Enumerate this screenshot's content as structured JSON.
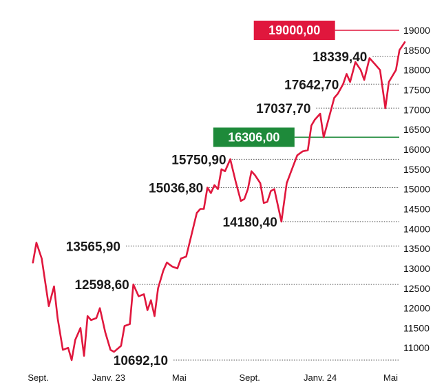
{
  "chart_data": {
    "type": "line",
    "ylim": [
      10692.1,
      19000
    ],
    "y_ticks": [
      11000,
      11500,
      12000,
      12500,
      13000,
      13500,
      14000,
      14500,
      15000,
      15500,
      16000,
      16500,
      17000,
      17500,
      18000,
      18500,
      19000
    ],
    "y_tick_labels": [
      "11000",
      "11500",
      "12000",
      "12500",
      "13000",
      "13500",
      "14000",
      "14500",
      "15000",
      "15500",
      "16000",
      "16500",
      "17000",
      "17500",
      "18000",
      "18500",
      "19000"
    ],
    "x_tick_labels": [
      "Sept.",
      "Janv. 23",
      "Mai",
      "Sept.",
      "Janv. 24",
      "Mai"
    ],
    "x_tick_months": [
      0,
      4,
      8,
      12,
      16,
      20
    ],
    "series": [
      {
        "color": "#e0173d",
        "points": [
          [
            -0.3,
            13150
          ],
          [
            -0.1,
            13650
          ],
          [
            0.2,
            13250
          ],
          [
            0.6,
            12050
          ],
          [
            0.9,
            12550
          ],
          [
            1.1,
            11750
          ],
          [
            1.4,
            10950
          ],
          [
            1.7,
            11000
          ],
          [
            1.9,
            10692.1
          ],
          [
            2.1,
            11200
          ],
          [
            2.4,
            11500
          ],
          [
            2.6,
            10800
          ],
          [
            2.8,
            11800
          ],
          [
            3.0,
            11700
          ],
          [
            3.3,
            11750
          ],
          [
            3.5,
            12000
          ],
          [
            3.8,
            11400
          ],
          [
            4.1,
            10950
          ],
          [
            4.3,
            10900
          ],
          [
            4.7,
            11050
          ],
          [
            4.9,
            11550
          ],
          [
            5.2,
            11600
          ],
          [
            5.4,
            12598.6
          ],
          [
            5.7,
            12300
          ],
          [
            6.0,
            12350
          ],
          [
            6.2,
            11950
          ],
          [
            6.4,
            12200
          ],
          [
            6.6,
            11800
          ],
          [
            6.8,
            12500
          ],
          [
            7.1,
            12950
          ],
          [
            7.3,
            13150
          ],
          [
            7.6,
            13050
          ],
          [
            7.9,
            13000
          ],
          [
            8.1,
            13250
          ],
          [
            8.4,
            13300
          ],
          [
            8.7,
            13850
          ],
          [
            9.0,
            14400
          ],
          [
            9.2,
            14500
          ],
          [
            9.4,
            14500
          ],
          [
            9.6,
            15036.8
          ],
          [
            9.8,
            14900
          ],
          [
            10.0,
            15100
          ],
          [
            10.2,
            15000
          ],
          [
            10.4,
            15500
          ],
          [
            10.6,
            15450
          ],
          [
            10.9,
            15750.9
          ],
          [
            11.2,
            15200
          ],
          [
            11.5,
            14700
          ],
          [
            11.7,
            14750
          ],
          [
            11.9,
            15000
          ],
          [
            12.1,
            15450
          ],
          [
            12.3,
            15350
          ],
          [
            12.6,
            15150
          ],
          [
            12.8,
            14650
          ],
          [
            13.0,
            14680
          ],
          [
            13.2,
            14950
          ],
          [
            13.4,
            15000
          ],
          [
            13.8,
            14180.4
          ],
          [
            14.1,
            15150
          ],
          [
            14.4,
            15500
          ],
          [
            14.7,
            15850
          ],
          [
            15.0,
            15950
          ],
          [
            15.3,
            15980
          ],
          [
            15.5,
            16600
          ],
          [
            15.7,
            16750
          ],
          [
            16.0,
            16900
          ],
          [
            16.2,
            16306
          ],
          [
            16.5,
            16800
          ],
          [
            16.8,
            17300
          ],
          [
            17.0,
            17400
          ],
          [
            17.3,
            17642.7
          ],
          [
            17.5,
            17900
          ],
          [
            17.7,
            17700
          ],
          [
            18.0,
            18200
          ],
          [
            18.3,
            18000
          ],
          [
            18.5,
            17750
          ],
          [
            18.8,
            18300
          ],
          [
            19.1,
            18150
          ],
          [
            19.4,
            18000
          ],
          [
            19.7,
            17037.7
          ],
          [
            19.9,
            17700
          ],
          [
            20.3,
            18000
          ],
          [
            20.5,
            18500
          ],
          [
            20.8,
            18700
          ]
        ]
      }
    ],
    "annotations": [
      {
        "label": "19000,00",
        "value": 19000.0,
        "style": "badge",
        "color": "#e0173d",
        "month": 17.0
      },
      {
        "label": "18339,40",
        "value": 18339.4,
        "style": "dotted",
        "month": 18.9
      },
      {
        "label": "17642,70",
        "value": 17642.7,
        "style": "dotted",
        "month": 17.3
      },
      {
        "label": "17037,70",
        "value": 17037.7,
        "style": "dotted",
        "month": 15.7
      },
      {
        "label": "16306,00",
        "value": 16306.0,
        "style": "badge",
        "color": "#1e8a3a",
        "month": 14.7
      },
      {
        "label": "15750,90",
        "value": 15750.9,
        "style": "dotted",
        "month": 10.9
      },
      {
        "label": "15036,80",
        "value": 15036.8,
        "style": "dotted",
        "month": 9.6
      },
      {
        "label": "14180,40",
        "value": 14180.4,
        "style": "dotted",
        "month": 13.8
      },
      {
        "label": "13565,90",
        "value": 13565.9,
        "style": "dotted",
        "month": 4.9
      },
      {
        "label": "12598,60",
        "value": 12598.6,
        "style": "dotted",
        "month": 5.4
      },
      {
        "label": "10692,10",
        "value": 10692.1,
        "style": "dotted",
        "month": 7.6
      }
    ]
  }
}
